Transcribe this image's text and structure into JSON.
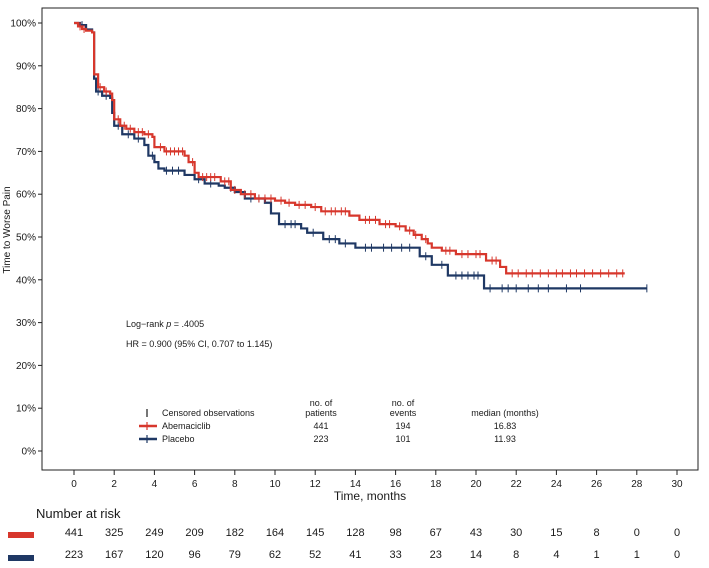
{
  "chart_data": {
    "type": "line",
    "subtype": "kaplan-meier",
    "xlabel": "Time, months",
    "ylabel": "Time to Worse Pain",
    "xlim": [
      0,
      30
    ],
    "ylim": [
      0,
      100
    ],
    "x_ticks": [
      0,
      2,
      4,
      6,
      8,
      10,
      12,
      14,
      16,
      18,
      20,
      22,
      24,
      26,
      28,
      30
    ],
    "y_ticks": [
      0,
      10,
      20,
      30,
      40,
      50,
      60,
      70,
      80,
      90,
      100
    ],
    "y_tick_labels": [
      "0%",
      "10%",
      "20%",
      "30%",
      "40%",
      "50%",
      "60%",
      "70%",
      "80%",
      "90%",
      "100%"
    ],
    "series": [
      {
        "name": "Abemaciclib",
        "color": "#d7372c",
        "x": [
          0,
          0.2,
          0.4,
          0.6,
          0.9,
          1.0,
          1.2,
          1.5,
          1.8,
          1.9,
          2.0,
          2.3,
          2.6,
          3.0,
          3.5,
          3.9,
          4.0,
          4.5,
          5.5,
          5.7,
          6.0,
          6.2,
          7.3,
          7.8,
          8.3,
          9.0,
          10.0,
          10.5,
          11.0,
          11.8,
          12.3,
          13.7,
          14.2,
          15.2,
          16.0,
          16.5,
          16.9,
          17.3,
          17.6,
          17.8,
          18.3,
          19.0,
          20.5,
          21.2,
          21.5,
          27.4
        ],
        "y": [
          100,
          99.2,
          98.6,
          98.2,
          97.8,
          88,
          85,
          84,
          83.5,
          82,
          77.5,
          76,
          75.3,
          74.5,
          74,
          73.4,
          71,
          70,
          69,
          67.5,
          65,
          64,
          63,
          61,
          60,
          59,
          58.5,
          58,
          57.5,
          57,
          56,
          55,
          54,
          53,
          52.5,
          51.5,
          50.5,
          49.5,
          48.5,
          47.5,
          46.8,
          46,
          44.5,
          43,
          41.5,
          41.5
        ],
        "censor_x": [
          0.3,
          0.5,
          1.3,
          1.6,
          2.2,
          2.5,
          2.8,
          3.2,
          3.4,
          3.7,
          4.3,
          4.6,
          4.8,
          5.0,
          5.2,
          5.4,
          5.9,
          6.4,
          6.6,
          6.8,
          7.0,
          7.5,
          7.7,
          8.0,
          8.5,
          8.8,
          9.2,
          9.5,
          9.8,
          10.3,
          10.7,
          11.2,
          11.5,
          12.0,
          12.5,
          12.8,
          13.0,
          13.3,
          13.5,
          14.5,
          14.7,
          15.0,
          15.5,
          15.7,
          16.2,
          16.7,
          17.0,
          17.5,
          18.5,
          18.7,
          19.3,
          19.6,
          20.0,
          20.2,
          20.8,
          21.0,
          21.8,
          22.1,
          22.5,
          22.8,
          23.2,
          23.6,
          24.0,
          24.3,
          24.7,
          25.0,
          25.4,
          25.8,
          26.2,
          26.6,
          27.0,
          27.3
        ]
      },
      {
        "name": "Placebo",
        "color": "#1f3864",
        "x": [
          0,
          0.3,
          0.6,
          0.9,
          1.0,
          1.1,
          1.4,
          1.8,
          1.9,
          2.0,
          2.4,
          3.0,
          3.5,
          3.7,
          4.0,
          4.2,
          4.5,
          5.5,
          6.0,
          6.5,
          7.2,
          7.5,
          8.0,
          8.5,
          9.5,
          9.8,
          10.2,
          11.3,
          11.6,
          12.4,
          13.2,
          14.0,
          17.2,
          17.8,
          18.6,
          20.4,
          28.5
        ],
        "y": [
          100,
          99.5,
          98.5,
          97.8,
          87,
          84,
          83,
          82.5,
          79,
          76,
          74,
          73,
          71.5,
          69,
          67.5,
          66,
          65.5,
          64.5,
          63.5,
          62.5,
          62,
          61.5,
          60.5,
          59,
          58,
          55.5,
          53,
          52,
          51,
          49.5,
          48.5,
          47.5,
          45.5,
          43.5,
          41,
          38,
          38
        ],
        "censor_x": [
          0.4,
          1.2,
          1.6,
          2.2,
          2.7,
          3.2,
          3.9,
          4.6,
          4.9,
          5.2,
          6.2,
          6.8,
          7.8,
          8.8,
          9.2,
          10.5,
          10.8,
          11.0,
          11.9,
          12.7,
          13.0,
          13.5,
          14.5,
          14.8,
          15.4,
          15.8,
          16.3,
          16.7,
          17.5,
          18.3,
          19.0,
          19.3,
          19.6,
          19.9,
          20.1,
          20.7,
          21.3,
          21.6,
          22.0,
          22.6,
          23.1,
          23.6,
          24.5,
          25.2,
          28.5
        ]
      }
    ]
  },
  "annotations": {
    "logrank_prefix": "Log−rank ",
    "logrank_p": "p",
    "logrank_value": " = .4005",
    "hr": "HR =  0.900 (95% CI, 0.707 to 1.145)"
  },
  "legend": {
    "censored_label": "Censored observations",
    "headers": {
      "patients_line1": "no. of",
      "patients_line2": "patients",
      "events_line1": "no. of",
      "events_line2": "events",
      "median": "median (months)"
    },
    "rows": [
      {
        "name": "Abemaciclib",
        "patients": "441",
        "events": "194",
        "median": "16.83"
      },
      {
        "name": "Placebo",
        "patients": "223",
        "events": "101",
        "median": "11.93"
      }
    ]
  },
  "risk_table": {
    "title": "Number at risk",
    "times": [
      0,
      2,
      4,
      6,
      8,
      10,
      12,
      14,
      16,
      18,
      20,
      22,
      24,
      26,
      28,
      30
    ],
    "rows": [
      {
        "name": "Abemaciclib",
        "values": [
          "441",
          "325",
          "249",
          "209",
          "182",
          "164",
          "145",
          "128",
          "98",
          "67",
          "43",
          "30",
          "15",
          "8",
          "0",
          "0"
        ]
      },
      {
        "name": "Placebo",
        "values": [
          "223",
          "167",
          "120",
          "96",
          "79",
          "62",
          "52",
          "41",
          "33",
          "23",
          "14",
          "8",
          "4",
          "1",
          "1",
          "0"
        ]
      }
    ]
  }
}
